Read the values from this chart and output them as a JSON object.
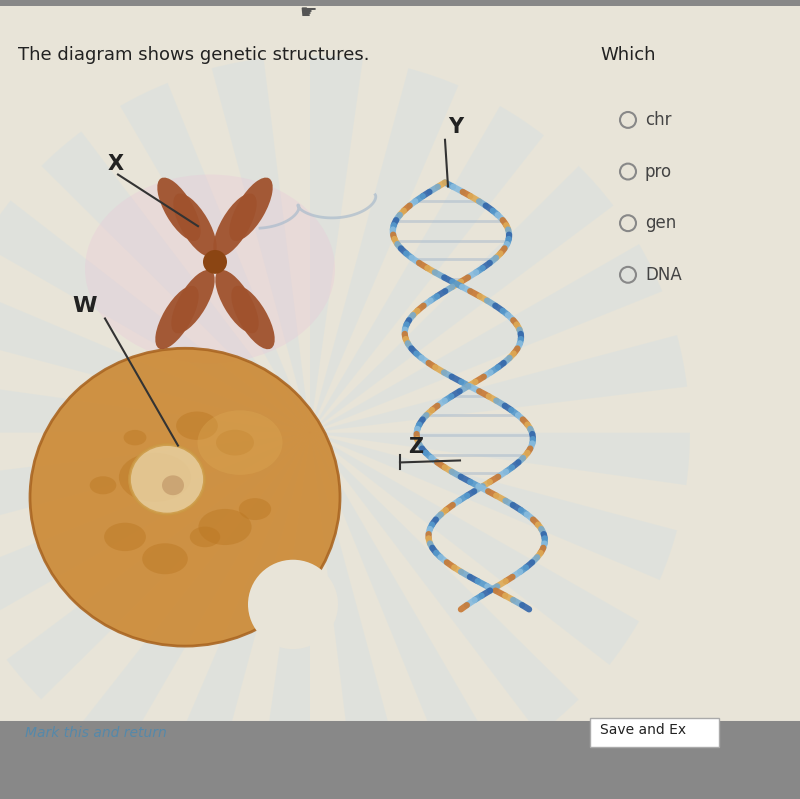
{
  "bg_color": "#e8e4d8",
  "title_text": "The diagram shows genetic structures.",
  "title_fontsize": 13,
  "question_text": "Which",
  "answer_choices": [
    "chr",
    "pro",
    "gen",
    "DNA"
  ],
  "bottom_left_link": "Mark this and return",
  "bottom_right_btn": "Save and Ex",
  "chromosome_color": "#a0522d",
  "chromosome_color2": "#8B4513",
  "cell_color": "#cc8833",
  "cell_edge_color": "#aa6622",
  "nucleus_color": "#e8d0a0",
  "nucleus_edge_color": "#cc9944",
  "label_fontsize": 15,
  "label_color": "#222222",
  "helix_colors": [
    "#5599cc",
    "#88bbdd",
    "#c87832",
    "#ddaa55",
    "#77aacc",
    "#3366aa"
  ],
  "strand_color": "#aabbcc",
  "rung_color": "#aabbcc",
  "bottom_bar_color": "#888888",
  "link_color": "#5588aa",
  "radio_color": "#888888",
  "answer_color": "#444444",
  "text_color": "#222222"
}
